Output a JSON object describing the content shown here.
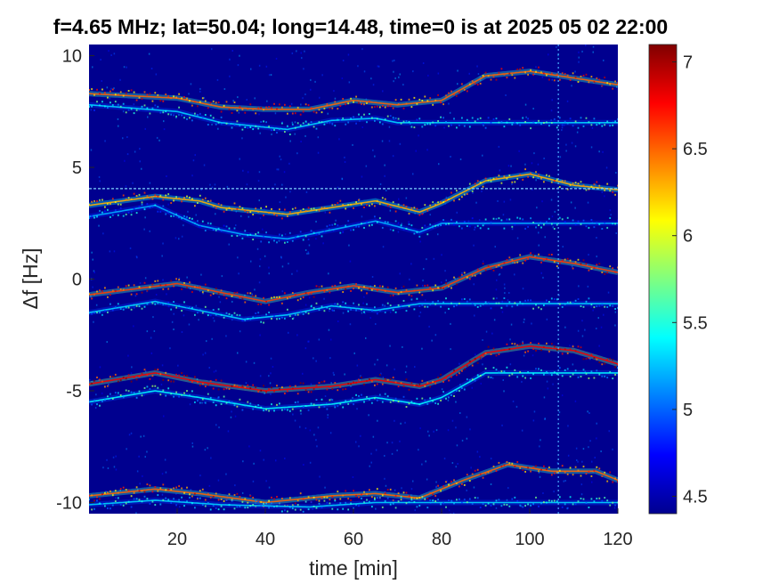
{
  "chart_data": {
    "type": "heatmap",
    "title": "f=4.65 MHz;  lat=50.04; long=14.48, time=0 is at 2025 05 02 22:00",
    "xlabel": "time [min]",
    "ylabel": "Δf [Hz]",
    "xlim": [
      0,
      120
    ],
    "ylim": [
      -10.5,
      10.5
    ],
    "x_ticks": [
      20,
      40,
      60,
      80,
      100,
      120
    ],
    "y_ticks": [
      10,
      5,
      0,
      -5,
      -10
    ],
    "x_tick_labels": [
      "20",
      "40",
      "60",
      "80",
      "100",
      "120"
    ],
    "y_tick_labels": [
      "10",
      "5",
      "0",
      "-5",
      "-10"
    ],
    "colorbar": {
      "range": [
        4.4,
        7.1
      ],
      "ticks": [
        7,
        6.5,
        6,
        5.5,
        5,
        4.5
      ],
      "tick_labels": [
        "7",
        "6.5",
        "6",
        "5.5",
        "5",
        "4.5"
      ],
      "colormap": "jet"
    },
    "background_color": "#00008f",
    "carrier_line_hz": 4.05,
    "vertical_artifact_min": 106.5,
    "traces": [
      {
        "points": [
          [
            0,
            8.3
          ],
          [
            10,
            8.2
          ],
          [
            20,
            8.1
          ],
          [
            30,
            7.7
          ],
          [
            40,
            7.6
          ],
          [
            50,
            7.6
          ],
          [
            60,
            8.0
          ],
          [
            70,
            7.8
          ],
          [
            80,
            8.0
          ],
          [
            90,
            9.1
          ],
          [
            100,
            9.3
          ],
          [
            110,
            9.0
          ],
          [
            120,
            8.7
          ]
        ],
        "intensity": 6.5
      },
      {
        "points": [
          [
            0,
            7.8
          ],
          [
            20,
            7.5
          ],
          [
            30,
            7.0
          ],
          [
            45,
            6.7
          ],
          [
            55,
            7.1
          ],
          [
            65,
            7.2
          ],
          [
            70,
            7.0
          ]
        ],
        "intensity": 5.3
      },
      {
        "points": [
          [
            0,
            3.3
          ],
          [
            15,
            3.7
          ],
          [
            25,
            3.5
          ],
          [
            30,
            3.2
          ],
          [
            45,
            2.9
          ],
          [
            55,
            3.2
          ],
          [
            65,
            3.5
          ],
          [
            75,
            3.0
          ],
          [
            80,
            3.4
          ],
          [
            90,
            4.4
          ],
          [
            100,
            4.7
          ],
          [
            110,
            4.2
          ],
          [
            120,
            4.0
          ]
        ],
        "intensity": 6.3
      },
      {
        "points": [
          [
            0,
            2.8
          ],
          [
            15,
            3.3
          ],
          [
            25,
            2.4
          ],
          [
            35,
            2.0
          ],
          [
            45,
            1.8
          ],
          [
            55,
            2.2
          ],
          [
            65,
            2.6
          ],
          [
            75,
            2.1
          ],
          [
            80,
            2.5
          ]
        ],
        "intensity": 5.2
      },
      {
        "points": [
          [
            0,
            -0.7
          ],
          [
            20,
            -0.2
          ],
          [
            30,
            -0.6
          ],
          [
            40,
            -1.0
          ],
          [
            50,
            -0.6
          ],
          [
            60,
            -0.3
          ],
          [
            70,
            -0.6
          ],
          [
            80,
            -0.4
          ],
          [
            90,
            0.5
          ],
          [
            100,
            1.0
          ],
          [
            110,
            0.7
          ],
          [
            120,
            0.3
          ]
        ],
        "intensity": 6.6
      },
      {
        "points": [
          [
            0,
            -1.5
          ],
          [
            15,
            -1.0
          ],
          [
            25,
            -1.4
          ],
          [
            35,
            -1.8
          ],
          [
            45,
            -1.6
          ],
          [
            55,
            -1.2
          ],
          [
            65,
            -1.4
          ],
          [
            75,
            -1.1
          ]
        ],
        "intensity": 5.3
      },
      {
        "points": [
          [
            0,
            -4.7
          ],
          [
            15,
            -4.2
          ],
          [
            25,
            -4.6
          ],
          [
            40,
            -5.0
          ],
          [
            55,
            -4.8
          ],
          [
            65,
            -4.5
          ],
          [
            75,
            -4.8
          ],
          [
            80,
            -4.5
          ],
          [
            90,
            -3.3
          ],
          [
            100,
            -3.0
          ],
          [
            110,
            -3.2
          ],
          [
            120,
            -3.8
          ]
        ],
        "intensity": 6.8
      },
      {
        "points": [
          [
            0,
            -5.5
          ],
          [
            15,
            -5.0
          ],
          [
            25,
            -5.3
          ],
          [
            40,
            -5.8
          ],
          [
            55,
            -5.6
          ],
          [
            65,
            -5.3
          ],
          [
            75,
            -5.6
          ],
          [
            80,
            -5.3
          ],
          [
            90,
            -4.2
          ]
        ],
        "intensity": 5.4
      },
      {
        "points": [
          [
            0,
            -9.7
          ],
          [
            15,
            -9.4
          ],
          [
            25,
            -9.6
          ],
          [
            40,
            -10.0
          ],
          [
            55,
            -9.7
          ],
          [
            65,
            -9.6
          ],
          [
            75,
            -9.8
          ],
          [
            85,
            -9.0
          ],
          [
            95,
            -8.3
          ],
          [
            105,
            -8.6
          ],
          [
            115,
            -8.6
          ],
          [
            120,
            -9.0
          ]
        ],
        "intensity": 6.5
      },
      {
        "points": [
          [
            0,
            -10.1
          ],
          [
            15,
            -9.9
          ],
          [
            30,
            -10.1
          ],
          [
            50,
            -10.2
          ],
          [
            65,
            -10.0
          ]
        ],
        "intensity": 5.3
      }
    ]
  }
}
